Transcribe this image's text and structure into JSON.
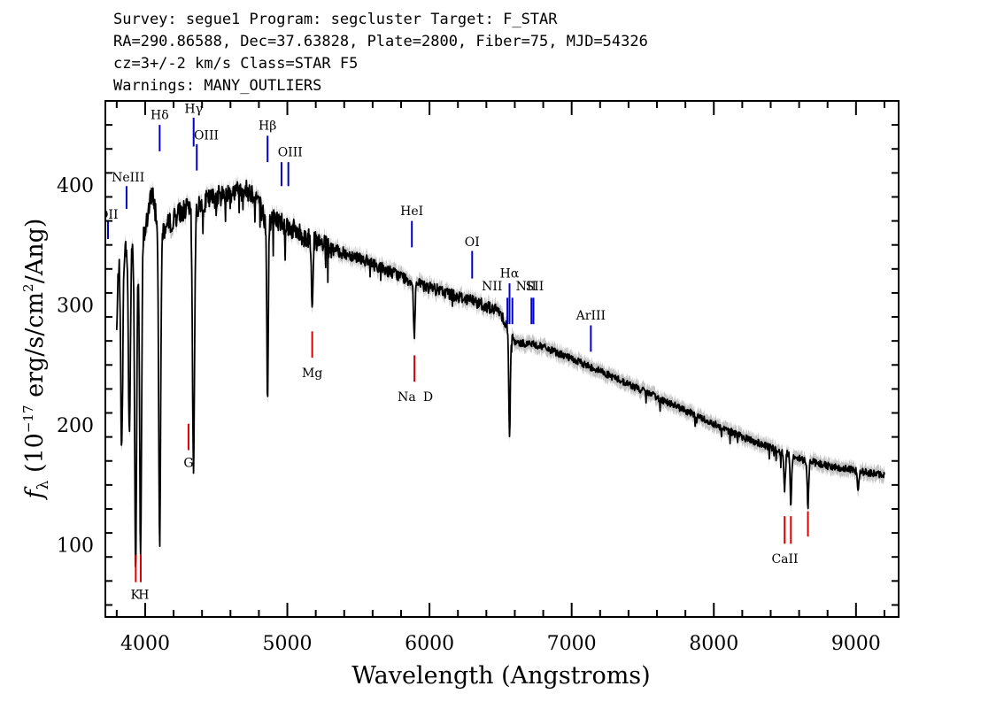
{
  "header": {
    "line1": "Survey: segue1 Program: segcluster Target: F_STAR",
    "line2": "RA=290.86588, Dec=37.63828, Plate=2800, Fiber=75, MJD=54326",
    "line3": "cz=3+/-2 km/s Class=STAR F5",
    "line4": "Warnings: MANY_OUTLIERS"
  },
  "colors": {
    "emission": "#0000cc",
    "absorption": "#dd0000",
    "spectrum": "#000000",
    "error_band": "#b4b4b4"
  },
  "chart_data": {
    "type": "line",
    "title": "",
    "xlabel": "Wavelength (Angstroms)",
    "ylabel": "f_λ (10^-17 erg/s/cm^2/Ang)",
    "xlim": [
      3720,
      9300
    ],
    "ylim": [
      40,
      470
    ],
    "xticks": [
      "4000",
      "5000",
      "6000",
      "7000",
      "8000",
      "9000"
    ],
    "yticks": [
      "100",
      "200",
      "300",
      "400"
    ],
    "continuum": [
      [
        3800,
        335
      ],
      [
        3850,
        345
      ],
      [
        3900,
        350
      ],
      [
        3950,
        355
      ],
      [
        4000,
        362
      ],
      [
        4050,
        395
      ],
      [
        4100,
        360
      ],
      [
        4150,
        365
      ],
      [
        4200,
        372
      ],
      [
        4250,
        378
      ],
      [
        4300,
        380
      ],
      [
        4350,
        378
      ],
      [
        4400,
        385
      ],
      [
        4450,
        388
      ],
      [
        4500,
        390
      ],
      [
        4550,
        392
      ],
      [
        4600,
        394
      ],
      [
        4650,
        395
      ],
      [
        4700,
        396
      ],
      [
        4750,
        394
      ],
      [
        4800,
        388
      ],
      [
        4830,
        375
      ],
      [
        4850,
        365
      ],
      [
        4900,
        372
      ],
      [
        4950,
        370
      ],
      [
        5000,
        366
      ],
      [
        5100,
        358
      ],
      [
        5200,
        352
      ],
      [
        5300,
        347
      ],
      [
        5400,
        343
      ],
      [
        5500,
        340
      ],
      [
        5600,
        334
      ],
      [
        5700,
        329
      ],
      [
        5800,
        324
      ],
      [
        5900,
        318
      ],
      [
        6000,
        314
      ],
      [
        6100,
        311
      ],
      [
        6200,
        307
      ],
      [
        6300,
        304
      ],
      [
        6400,
        299
      ],
      [
        6500,
        294
      ],
      [
        6600,
        268
      ],
      [
        6700,
        268
      ],
      [
        6800,
        265
      ],
      [
        7000,
        255
      ],
      [
        7200,
        245
      ],
      [
        7400,
        234
      ],
      [
        7600,
        223
      ],
      [
        7800,
        212
      ],
      [
        8000,
        201
      ],
      [
        8200,
        190
      ],
      [
        8400,
        181
      ],
      [
        8600,
        172
      ],
      [
        8800,
        166
      ],
      [
        9000,
        162
      ],
      [
        9200,
        158
      ]
    ],
    "absorption_features": [
      {
        "wave": 3798,
        "depth": 60
      },
      {
        "wave": 3835,
        "depth": 165
      },
      {
        "wave": 3889,
        "depth": 155
      },
      {
        "wave": 3933,
        "depth": 270
      },
      {
        "wave": 3968,
        "depth": 265
      },
      {
        "wave": 4102,
        "depth": 255
      },
      {
        "wave": 4340,
        "depth": 220
      },
      {
        "wave": 4861,
        "depth": 145
      },
      {
        "wave": 5175,
        "depth": 50
      },
      {
        "wave": 5893,
        "depth": 45
      },
      {
        "wave": 6563,
        "depth": 90
      },
      {
        "wave": 8498,
        "depth": 30
      },
      {
        "wave": 8542,
        "depth": 42
      },
      {
        "wave": 8662,
        "depth": 38
      },
      {
        "wave": 9015,
        "depth": 15
      }
    ],
    "emission_lines": [
      {
        "label": "OII",
        "wave": 3727,
        "top": 370,
        "bottom": 355
      },
      {
        "label": "NeIII",
        "wave": 3869,
        "top": 399,
        "bottom": 380
      },
      {
        "label": "Hδ",
        "wave": 4102,
        "top": 450,
        "bottom": 428
      },
      {
        "label": "Hγ",
        "wave": 4341,
        "top": 456,
        "bottom": 432
      },
      {
        "label": "OIII",
        "wave": 4363,
        "top": 434,
        "bottom": 412
      },
      {
        "label": "Hβ",
        "wave": 4861,
        "top": 441,
        "bottom": 419
      },
      {
        "label": "OIII",
        "wave": 4959,
        "top": 419,
        "bottom": 399
      },
      {
        "label": "OIII",
        "wave": 5007,
        "top": 419,
        "bottom": 399
      },
      {
        "label": "HeI",
        "wave": 5876,
        "top": 370,
        "bottom": 348
      },
      {
        "label": "OI",
        "wave": 6300,
        "top": 345,
        "bottom": 322
      },
      {
        "label": "NII",
        "wave": 6548,
        "top": 306,
        "bottom": 284
      },
      {
        "label": "Hα",
        "wave": 6563,
        "top": 318,
        "bottom": 284
      },
      {
        "label": "NII",
        "wave": 6583,
        "top": 306,
        "bottom": 284
      },
      {
        "label": "SII",
        "wave": 6717,
        "top": 306,
        "bottom": 284
      },
      {
        "label": "SII",
        "wave": 6731,
        "top": 306,
        "bottom": 284
      },
      {
        "label": "ArIII",
        "wave": 7135,
        "top": 283,
        "bottom": 261
      }
    ],
    "absorption_lines": [
      {
        "label": "K",
        "wave": 3934,
        "top": 92,
        "bottom": 69
      },
      {
        "label": "H",
        "wave": 3969,
        "top": 92,
        "bottom": 69
      },
      {
        "label": "G",
        "wave": 4305,
        "top": 201,
        "bottom": 179
      },
      {
        "label": "Mg",
        "wave": 5175,
        "top": 278,
        "bottom": 256
      },
      {
        "label": "Na",
        "wave": 5894,
        "top": 258,
        "bottom": 236
      },
      {
        "label": "CaII",
        "wave": 8498,
        "top": 124,
        "bottom": 101
      },
      {
        "label": "CaII",
        "wave": 8542,
        "top": 124,
        "bottom": 101
      },
      {
        "label": "CaII",
        "wave": 8662,
        "top": 128,
        "bottom": 107
      }
    ],
    "line_labels": [
      {
        "text": "OII",
        "wave": 3740,
        "y": 372,
        "kind": "emission"
      },
      {
        "text": "NeIII",
        "wave": 3880,
        "y": 403,
        "kind": "emission"
      },
      {
        "text": "Hδ",
        "wave": 4102,
        "y": 455,
        "kind": "emission"
      },
      {
        "text": "Hγ",
        "wave": 4341,
        "y": 460,
        "kind": "emission"
      },
      {
        "text": "OIII",
        "wave": 4430,
        "y": 438,
        "kind": "emission"
      },
      {
        "text": "Hβ",
        "wave": 4861,
        "y": 446,
        "kind": "emission"
      },
      {
        "text": "OIII",
        "wave": 5020,
        "y": 424,
        "kind": "emission"
      },
      {
        "text": "HeI",
        "wave": 5876,
        "y": 375,
        "kind": "emission"
      },
      {
        "text": "OI",
        "wave": 6300,
        "y": 349,
        "kind": "emission"
      },
      {
        "text": "NII",
        "wave": 6440,
        "y": 312,
        "kind": "emission"
      },
      {
        "text": "Hα",
        "wave": 6563,
        "y": 323,
        "kind": "emission"
      },
      {
        "text": "NII",
        "wave": 6680,
        "y": 312,
        "kind": "emission"
      },
      {
        "text": "SII",
        "wave": 6740,
        "y": 312,
        "kind": "emission"
      },
      {
        "text": "ArIII",
        "wave": 7135,
        "y": 288,
        "kind": "emission"
      },
      {
        "text": "K",
        "wave": 3930,
        "y": 55,
        "kind": "absorption"
      },
      {
        "text": "H",
        "wave": 3990,
        "y": 55,
        "kind": "absorption"
      },
      {
        "text": "G",
        "wave": 4305,
        "y": 165,
        "kind": "absorption"
      },
      {
        "text": "Mg",
        "wave": 5175,
        "y": 240,
        "kind": "absorption"
      },
      {
        "text": "Na",
        "wave": 5840,
        "y": 220,
        "kind": "absorption"
      },
      {
        "text": "D",
        "wave": 5990,
        "y": 220,
        "kind": "absorption"
      },
      {
        "text": "CaII",
        "wave": 8500,
        "y": 85,
        "kind": "absorption"
      }
    ]
  }
}
